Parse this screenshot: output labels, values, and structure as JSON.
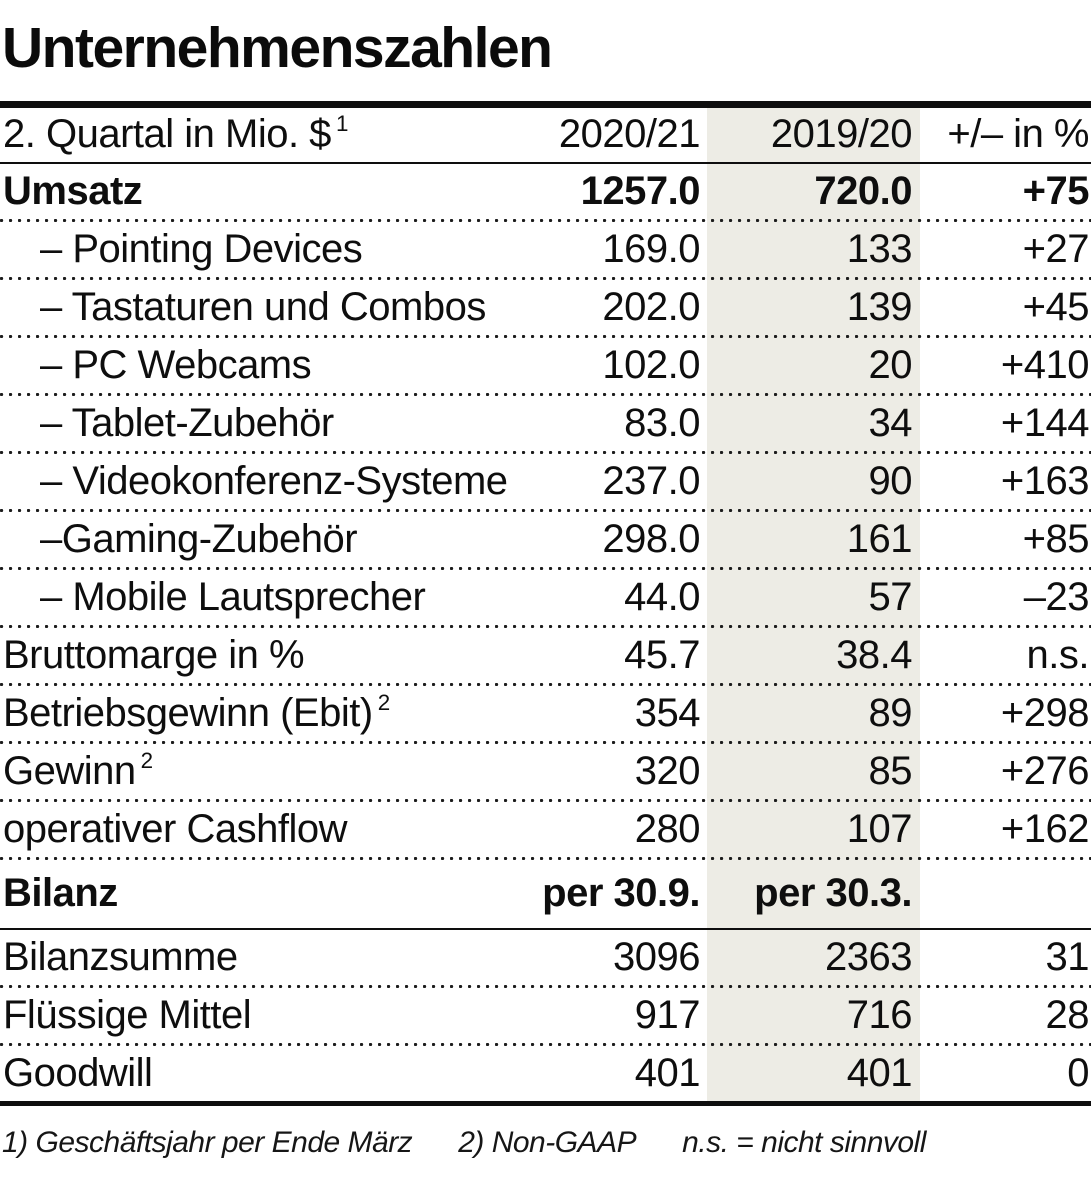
{
  "title": "Unternehmenszahlen",
  "colors": {
    "text": "#0e0e0e",
    "shade_column": "#edece5",
    "rule": "#0e0e0e"
  },
  "header": {
    "label": "2. Quartal in Mio. $",
    "label_sup": "1",
    "c1": "2020/21",
    "c2": "2019/20",
    "c3": "+/– in %"
  },
  "rows": [
    {
      "label": "Umsatz",
      "sup": "",
      "c1": "1257.0",
      "c2": "720.0",
      "c3": "+75",
      "style": "bold"
    },
    {
      "label": "– Pointing Devices",
      "sup": "",
      "c1": "169.0",
      "c2": "133",
      "c3": "+27",
      "style": "indent"
    },
    {
      "label": "– Tastaturen und Combos",
      "sup": "",
      "c1": "202.0",
      "c2": "139",
      "c3": "+45",
      "style": "indent"
    },
    {
      "label": "– PC Webcams",
      "sup": "",
      "c1": "102.0",
      "c2": "20",
      "c3": "+410",
      "style": "indent"
    },
    {
      "label": "– Tablet-Zubehör",
      "sup": "",
      "c1": "83.0",
      "c2": "34",
      "c3": "+144",
      "style": "indent"
    },
    {
      "label": "– Videokonferenz-Systeme",
      "sup": "",
      "c1": "237.0",
      "c2": "90",
      "c3": "+163",
      "style": "indent"
    },
    {
      "label": "–Gaming-Zubehör",
      "sup": "",
      "c1": "298.0",
      "c2": "161",
      "c3": "+85",
      "style": "indent"
    },
    {
      "label": "– Mobile Lautsprecher",
      "sup": "",
      "c1": "44.0",
      "c2": "57",
      "c3": "–23",
      "style": "indent"
    },
    {
      "label": "Bruttomarge in %",
      "sup": "",
      "c1": "45.7",
      "c2": "38.4",
      "c3": "n.s.",
      "style": ""
    },
    {
      "label": "Betriebsgewinn (Ebit)",
      "sup": "2",
      "c1": "354",
      "c2": "89",
      "c3": "+298",
      "style": ""
    },
    {
      "label": "Gewinn",
      "sup": "2",
      "c1": "320",
      "c2": "85",
      "c3": "+276",
      "style": ""
    },
    {
      "label": "operativer Cashflow",
      "sup": "",
      "c1": "280",
      "c2": "107",
      "c3": "+162",
      "style": ""
    }
  ],
  "balance_header": {
    "label": "Bilanz",
    "c1": "per 30.9.",
    "c2": "per 30.3.",
    "c3": ""
  },
  "balance_rows": [
    {
      "label": "Bilanzsumme",
      "sup": "",
      "c1": "3096",
      "c2": "2363",
      "c3": "31",
      "style": ""
    },
    {
      "label": "Flüssige Mittel",
      "sup": "",
      "c1": "917",
      "c2": "716",
      "c3": "28",
      "style": ""
    },
    {
      "label": "Goodwill",
      "sup": "",
      "c1": "401",
      "c2": "401",
      "c3": "0",
      "style": ""
    }
  ],
  "footnote": {
    "f1": "1) Geschäftsjahr per Ende März",
    "f2": "2) Non-GAAP",
    "f3": "n.s. = nicht sinnvoll"
  },
  "chart_data": {
    "type": "table",
    "title": "Unternehmenszahlen",
    "columns": [
      "2. Quartal in Mio. $ 1)",
      "2020/21",
      "2019/20",
      "+/– in %"
    ],
    "rows": [
      [
        "Umsatz",
        1257.0,
        720.0,
        "+75"
      ],
      [
        "Pointing Devices",
        169.0,
        133,
        "+27"
      ],
      [
        "Tastaturen und Combos",
        202.0,
        139,
        "+45"
      ],
      [
        "PC Webcams",
        102.0,
        20,
        "+410"
      ],
      [
        "Tablet-Zubehör",
        83.0,
        34,
        "+144"
      ],
      [
        "Videokonferenz-Systeme",
        237.0,
        90,
        "+163"
      ],
      [
        "Gaming-Zubehör",
        298.0,
        161,
        "+85"
      ],
      [
        "Mobile Lautsprecher",
        44.0,
        57,
        "-23"
      ],
      [
        "Bruttomarge in %",
        45.7,
        38.4,
        "n.s."
      ],
      [
        "Betriebsgewinn (Ebit) 2)",
        354,
        89,
        "+298"
      ],
      [
        "Gewinn 2)",
        320,
        85,
        "+276"
      ],
      [
        "operativer Cashflow",
        280,
        107,
        "+162"
      ]
    ],
    "balance_section": {
      "header": [
        "Bilanz",
        "per 30.9.",
        "per 30.3.",
        ""
      ],
      "rows": [
        [
          "Bilanzsumme",
          3096,
          2363,
          31
        ],
        [
          "Flüssige Mittel",
          917,
          716,
          28
        ],
        [
          "Goodwill",
          401,
          401,
          0
        ]
      ]
    },
    "footnotes": [
      "1) Geschäftsjahr per Ende März",
      "2) Non-GAAP",
      "n.s. = nicht sinnvoll"
    ]
  }
}
